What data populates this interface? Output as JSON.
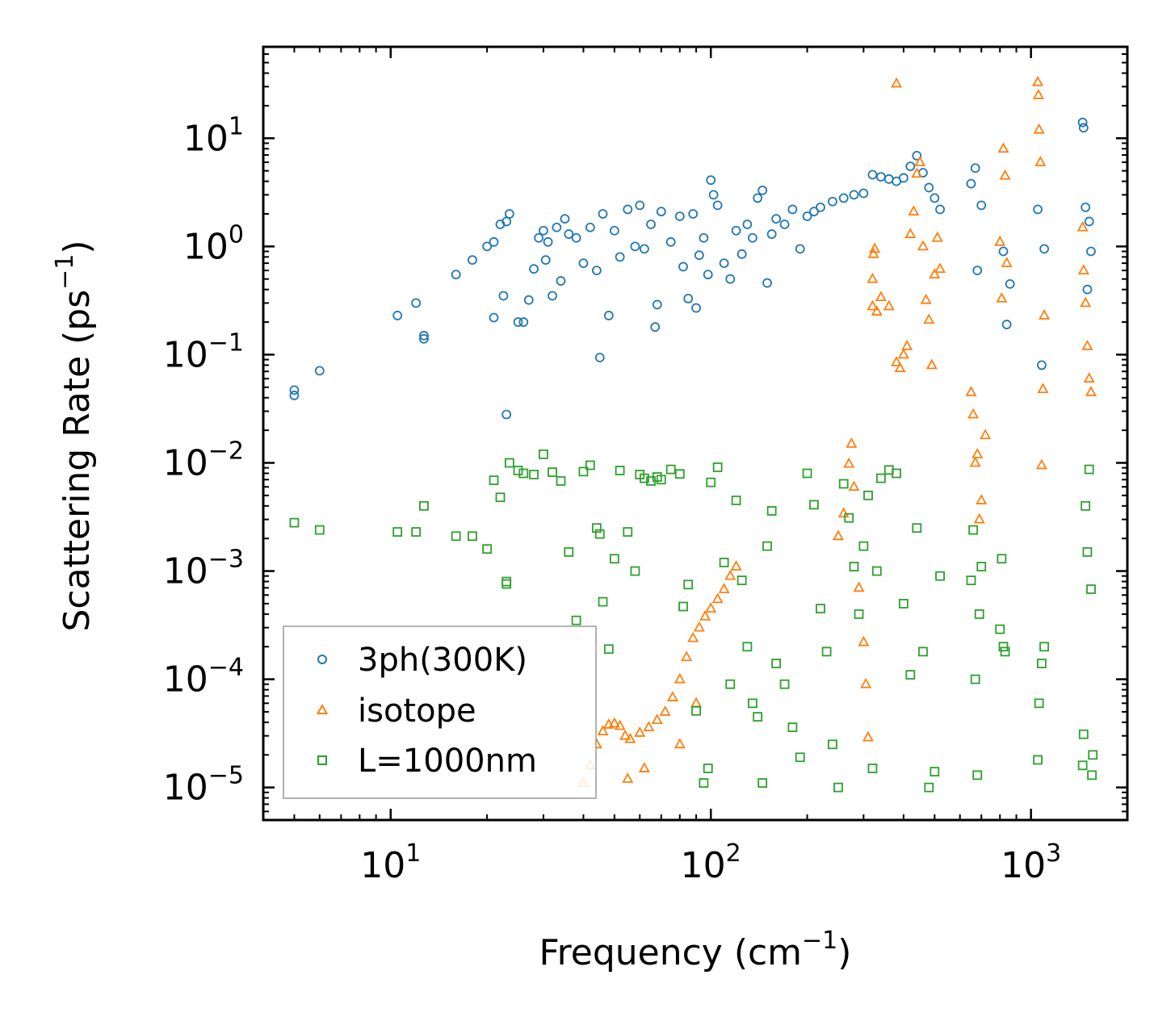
{
  "chart_data": {
    "type": "scatter",
    "title": "",
    "xlabel": "Frequency (cm",
    "xlabel_sup": "−1",
    "xlabel_suffix": ")",
    "ylabel": "Scattering Rate (ps",
    "ylabel_sup": "−1",
    "ylabel_suffix": ")",
    "xscale": "log",
    "yscale": "log",
    "xlim": [
      4,
      2000
    ],
    "ylim": [
      5e-06,
      70
    ],
    "grid": false,
    "legend_position": "lower-left",
    "x_ticks": [
      {
        "value": 10,
        "base": "10",
        "exp": "1"
      },
      {
        "value": 100,
        "base": "10",
        "exp": "2"
      },
      {
        "value": 1000,
        "base": "10",
        "exp": "3"
      }
    ],
    "y_ticks": [
      {
        "value": 10,
        "base": "10",
        "exp": "1"
      },
      {
        "value": 1,
        "base": "10",
        "exp": "0"
      },
      {
        "value": 0.1,
        "base": "10",
        "exp": "−1"
      },
      {
        "value": 0.01,
        "base": "10",
        "exp": "−2"
      },
      {
        "value": 0.001,
        "base": "10",
        "exp": "−3"
      },
      {
        "value": 0.0001,
        "base": "10",
        "exp": "−4"
      },
      {
        "value": 1e-05,
        "base": "10",
        "exp": "−5"
      }
    ],
    "series": [
      {
        "name": "3ph(300K)",
        "marker": "circle",
        "color": "#1f77b4",
        "points": [
          [
            5.0,
            0.047
          ],
          [
            5.0,
            0.042
          ],
          [
            6.0,
            0.071
          ],
          [
            10.5,
            0.23
          ],
          [
            12.0,
            0.3
          ],
          [
            12.7,
            0.15
          ],
          [
            12.7,
            0.14
          ],
          [
            16.0,
            0.55
          ],
          [
            18.0,
            0.75
          ],
          [
            20.0,
            1.0
          ],
          [
            21.0,
            1.1
          ],
          [
            21.0,
            0.22
          ],
          [
            22.0,
            1.6
          ],
          [
            22.5,
            0.35
          ],
          [
            23.0,
            1.7
          ],
          [
            23.5,
            2.0
          ],
          [
            23.0,
            0.028
          ],
          [
            25.0,
            0.2
          ],
          [
            26.0,
            0.2
          ],
          [
            27.0,
            0.32
          ],
          [
            28.0,
            0.62
          ],
          [
            29.0,
            1.2
          ],
          [
            30.0,
            1.4
          ],
          [
            30.5,
            0.75
          ],
          [
            31.0,
            1.1
          ],
          [
            32.0,
            0.35
          ],
          [
            33.0,
            1.5
          ],
          [
            34.0,
            0.48
          ],
          [
            35.0,
            1.8
          ],
          [
            36.0,
            1.3
          ],
          [
            38.0,
            1.2
          ],
          [
            40.0,
            0.7
          ],
          [
            42.0,
            1.5
          ],
          [
            44.0,
            0.6
          ],
          [
            45.0,
            0.094
          ],
          [
            46.0,
            2.0
          ],
          [
            48.0,
            0.23
          ],
          [
            50.0,
            1.4
          ],
          [
            52.0,
            0.8
          ],
          [
            55.0,
            2.2
          ],
          [
            58.0,
            1.0
          ],
          [
            60.0,
            2.4
          ],
          [
            62.0,
            0.95
          ],
          [
            65.0,
            1.6
          ],
          [
            67.0,
            0.18
          ],
          [
            68.0,
            0.29
          ],
          [
            70.0,
            2.1
          ],
          [
            75.0,
            1.1
          ],
          [
            80.0,
            1.9
          ],
          [
            82.0,
            0.65
          ],
          [
            85.0,
            0.33
          ],
          [
            88.0,
            2.0
          ],
          [
            90.0,
            0.27
          ],
          [
            92.0,
            0.83
          ],
          [
            95.0,
            1.2
          ],
          [
            98.0,
            0.55
          ],
          [
            100.0,
            4.1
          ],
          [
            102.0,
            3.0
          ],
          [
            105.0,
            2.4
          ],
          [
            110.0,
            0.7
          ],
          [
            115.0,
            0.5
          ],
          [
            120.0,
            1.4
          ],
          [
            125.0,
            0.85
          ],
          [
            130.0,
            1.6
          ],
          [
            135.0,
            1.2
          ],
          [
            140.0,
            2.8
          ],
          [
            145.0,
            3.3
          ],
          [
            150.0,
            0.46
          ],
          [
            155.0,
            1.3
          ],
          [
            160.0,
            1.8
          ],
          [
            170.0,
            1.6
          ],
          [
            180.0,
            2.2
          ],
          [
            190.0,
            0.95
          ],
          [
            200.0,
            1.9
          ],
          [
            210.0,
            2.1
          ],
          [
            220.0,
            2.3
          ],
          [
            240.0,
            2.6
          ],
          [
            260.0,
            2.8
          ],
          [
            280.0,
            3.0
          ],
          [
            300.0,
            3.1
          ],
          [
            320.0,
            4.6
          ],
          [
            340.0,
            4.4
          ],
          [
            360.0,
            4.2
          ],
          [
            380.0,
            4.0
          ],
          [
            400.0,
            4.3
          ],
          [
            420.0,
            5.5
          ],
          [
            440.0,
            6.9
          ],
          [
            460.0,
            4.8
          ],
          [
            480.0,
            3.5
          ],
          [
            500.0,
            2.8
          ],
          [
            520.0,
            2.2
          ],
          [
            650.0,
            3.8
          ],
          [
            670.0,
            5.3
          ],
          [
            680.0,
            0.6
          ],
          [
            700.0,
            2.4
          ],
          [
            820.0,
            0.9
          ],
          [
            840.0,
            0.19
          ],
          [
            860.0,
            0.45
          ],
          [
            1050.0,
            2.2
          ],
          [
            1080.0,
            0.08
          ],
          [
            1100.0,
            0.95
          ],
          [
            1450.0,
            14.0
          ],
          [
            1460.0,
            12.5
          ],
          [
            1480.0,
            2.3
          ],
          [
            1500.0,
            0.4
          ],
          [
            1520.0,
            1.7
          ],
          [
            1540.0,
            0.9
          ]
        ]
      },
      {
        "name": "isotope",
        "marker": "triangle",
        "color": "#ff7f0e",
        "points": [
          [
            40.0,
            1.1e-05
          ],
          [
            42.0,
            1.6e-05
          ],
          [
            44.0,
            2.5e-05
          ],
          [
            46.0,
            3.3e-05
          ],
          [
            48.0,
            3.8e-05
          ],
          [
            50.0,
            3.9e-05
          ],
          [
            52.0,
            3.7e-05
          ],
          [
            54.0,
            3e-05
          ],
          [
            56.0,
            2.8e-05
          ],
          [
            60.0,
            3.2e-05
          ],
          [
            64.0,
            3.6e-05
          ],
          [
            68.0,
            4.2e-05
          ],
          [
            72.0,
            5e-05
          ],
          [
            76.0,
            6.8e-05
          ],
          [
            80.0,
            0.0001
          ],
          [
            84.0,
            0.00016
          ],
          [
            88.0,
            0.00024
          ],
          [
            92.0,
            0.0003
          ],
          [
            96.0,
            0.00038
          ],
          [
            100.0,
            0.00045
          ],
          [
            105.0,
            0.00055
          ],
          [
            110.0,
            0.00068
          ],
          [
            115.0,
            0.0009
          ],
          [
            120.0,
            0.0011
          ],
          [
            55.0,
            1.2e-05
          ],
          [
            62.0,
            1.5e-05
          ],
          [
            80.0,
            2.5e-05
          ],
          [
            90.0,
            6e-05
          ],
          [
            250.0,
            0.0021
          ],
          [
            260.0,
            0.0034
          ],
          [
            270.0,
            0.0098
          ],
          [
            275.0,
            0.015
          ],
          [
            280.0,
            0.006
          ],
          [
            290.0,
            0.0007
          ],
          [
            300.0,
            0.00022
          ],
          [
            305.0,
            9e-05
          ],
          [
            310.0,
            2.9e-05
          ],
          [
            320.0,
            0.28
          ],
          [
            320.0,
            0.5
          ],
          [
            322.0,
            0.85
          ],
          [
            325.0,
            0.95
          ],
          [
            330.0,
            0.25
          ],
          [
            340.0,
            0.34
          ],
          [
            360.0,
            0.28
          ],
          [
            380.0,
            0.085
          ],
          [
            390.0,
            0.075
          ],
          [
            400.0,
            0.1
          ],
          [
            410.0,
            0.12
          ],
          [
            380.0,
            32.0
          ],
          [
            420.0,
            1.3
          ],
          [
            430.0,
            2.1
          ],
          [
            440.0,
            4.7
          ],
          [
            450.0,
            6.0
          ],
          [
            460.0,
            1.0
          ],
          [
            470.0,
            0.32
          ],
          [
            480.0,
            0.21
          ],
          [
            490.0,
            0.08
          ],
          [
            500.0,
            0.55
          ],
          [
            510.0,
            1.2
          ],
          [
            520.0,
            0.62
          ],
          [
            650.0,
            0.045
          ],
          [
            660.0,
            0.028
          ],
          [
            670.0,
            0.01
          ],
          [
            680.0,
            0.012
          ],
          [
            690.0,
            0.003
          ],
          [
            700.0,
            0.0045
          ],
          [
            720.0,
            0.018
          ],
          [
            800.0,
            1.1
          ],
          [
            810.0,
            0.33
          ],
          [
            820.0,
            8.0
          ],
          [
            830.0,
            4.5
          ],
          [
            840.0,
            0.7
          ],
          [
            1050.0,
            33.0
          ],
          [
            1055.0,
            25.0
          ],
          [
            1060.0,
            12.0
          ],
          [
            1070.0,
            6.0
          ],
          [
            1080.0,
            0.0095
          ],
          [
            1090.0,
            0.048
          ],
          [
            1100.0,
            0.23
          ],
          [
            1450.0,
            1.5
          ],
          [
            1460.0,
            0.6
          ],
          [
            1480.0,
            0.3
          ],
          [
            1500.0,
            0.12
          ],
          [
            1520.0,
            0.06
          ],
          [
            1540.0,
            0.045
          ]
        ]
      },
      {
        "name": "L=1000nm",
        "marker": "square",
        "color": "#2ca02c",
        "points": [
          [
            5.0,
            0.0028
          ],
          [
            6.0,
            0.0024
          ],
          [
            10.5,
            0.0023
          ],
          [
            12.0,
            0.0023
          ],
          [
            12.7,
            0.004
          ],
          [
            16.0,
            0.0021
          ],
          [
            18.0,
            0.0021
          ],
          [
            20.0,
            0.0016
          ],
          [
            21.0,
            0.0069
          ],
          [
            22.0,
            0.0048
          ],
          [
            23.0,
            0.00076
          ],
          [
            23.0,
            0.0008
          ],
          [
            23.5,
            0.01
          ],
          [
            25.0,
            0.0085
          ],
          [
            26.0,
            0.008
          ],
          [
            28.0,
            0.0078
          ],
          [
            30.0,
            0.012
          ],
          [
            32.0,
            0.0082
          ],
          [
            34.0,
            0.0068
          ],
          [
            36.0,
            0.0015
          ],
          [
            38.0,
            0.00035
          ],
          [
            40.0,
            0.0083
          ],
          [
            42.0,
            0.0095
          ],
          [
            44.0,
            0.0025
          ],
          [
            45.0,
            0.0022
          ],
          [
            46.0,
            0.00052
          ],
          [
            48.0,
            0.00019
          ],
          [
            50.0,
            0.0013
          ],
          [
            52.0,
            0.0085
          ],
          [
            55.0,
            0.0023
          ],
          [
            58.0,
            0.001
          ],
          [
            60.0,
            0.0078
          ],
          [
            62.0,
            0.0072
          ],
          [
            65.0,
            0.0068
          ],
          [
            68.0,
            0.0074
          ],
          [
            70.0,
            0.007
          ],
          [
            75.0,
            0.0087
          ],
          [
            80.0,
            0.0079
          ],
          [
            82.0,
            0.00047
          ],
          [
            85.0,
            0.00075
          ],
          [
            90.0,
            5.1e-05
          ],
          [
            95.0,
            1.1e-05
          ],
          [
            98.0,
            1.5e-05
          ],
          [
            100.0,
            0.0066
          ],
          [
            105.0,
            0.0091
          ],
          [
            110.0,
            0.0012
          ],
          [
            115.0,
            9e-05
          ],
          [
            120.0,
            0.0045
          ],
          [
            125.0,
            0.00082
          ],
          [
            130.0,
            0.0002
          ],
          [
            135.0,
            6e-05
          ],
          [
            140.0,
            4.5e-05
          ],
          [
            145.0,
            1.1e-05
          ],
          [
            150.0,
            0.0017
          ],
          [
            155.0,
            0.0036
          ],
          [
            160.0,
            0.00014
          ],
          [
            170.0,
            9e-05
          ],
          [
            180.0,
            3.6e-05
          ],
          [
            190.0,
            1.9e-05
          ],
          [
            200.0,
            0.008
          ],
          [
            210.0,
            0.0041
          ],
          [
            220.0,
            0.00045
          ],
          [
            230.0,
            0.00018
          ],
          [
            240.0,
            2.5e-05
          ],
          [
            250.0,
            1e-05
          ],
          [
            260.0,
            0.0064
          ],
          [
            270.0,
            0.0031
          ],
          [
            280.0,
            0.0011
          ],
          [
            290.0,
            0.0004
          ],
          [
            300.0,
            0.0017
          ],
          [
            310.0,
            0.005
          ],
          [
            320.0,
            1.5e-05
          ],
          [
            330.0,
            0.001
          ],
          [
            340.0,
            0.0072
          ],
          [
            360.0,
            0.0086
          ],
          [
            380.0,
            0.008
          ],
          [
            400.0,
            0.0005
          ],
          [
            420.0,
            0.00011
          ],
          [
            440.0,
            0.0025
          ],
          [
            460.0,
            0.00018
          ],
          [
            480.0,
            1e-05
          ],
          [
            500.0,
            1.4e-05
          ],
          [
            520.0,
            0.0009
          ],
          [
            650.0,
            0.00082
          ],
          [
            660.0,
            0.0024
          ],
          [
            670.0,
            0.0001
          ],
          [
            680.0,
            1.3e-05
          ],
          [
            690.0,
            0.0004
          ],
          [
            700.0,
            0.0011
          ],
          [
            800.0,
            0.00029
          ],
          [
            810.0,
            0.0013
          ],
          [
            820.0,
            0.0002
          ],
          [
            830.0,
            0.00018
          ],
          [
            1050.0,
            1.8e-05
          ],
          [
            1060.0,
            6e-05
          ],
          [
            1080.0,
            0.00014
          ],
          [
            1100.0,
            0.0002
          ],
          [
            1450.0,
            1.6e-05
          ],
          [
            1460.0,
            3.1e-05
          ],
          [
            1480.0,
            0.004
          ],
          [
            1500.0,
            0.0015
          ],
          [
            1520.0,
            0.0087
          ],
          [
            1540.0,
            0.00068
          ],
          [
            1550.0,
            1.3e-05
          ],
          [
            1560.0,
            2e-05
          ]
        ]
      }
    ]
  }
}
